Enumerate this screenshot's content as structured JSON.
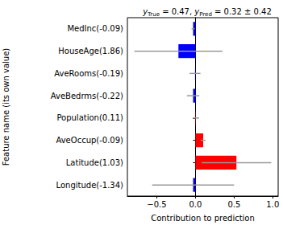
{
  "chart_data": {
    "type": "bar",
    "orientation": "horizontal",
    "title": "yTrue = 0.47, yPred = 0.32 ± 0.42",
    "xlabel": "Contribution to prediction",
    "ylabel": "Feature name (its own value)",
    "categories": [
      "MedInc(-0.09)",
      "HouseAge(1.86)",
      "AveRooms(-0.19)",
      "AveBedrms(-0.22)",
      "Population(0.11)",
      "AveOccup(-0.09)",
      "Latitude(1.03)",
      "Longitude(-1.34)"
    ],
    "values": [
      -0.03,
      -0.22,
      -0.005,
      -0.03,
      0.005,
      0.1,
      0.53,
      -0.03
    ],
    "errors": [
      0.02,
      0.57,
      0.07,
      0.08,
      0.04,
      0.03,
      0.45,
      0.53
    ],
    "colors": [
      "#0000ff",
      "#0000ff",
      "#0000ff",
      "#0000ff",
      "#ff0000",
      "#ff0000",
      "#ff0000",
      "#0000ff"
    ],
    "error_color": "#999999",
    "xlim": [
      -0.88,
      1.07
    ],
    "xticks": [
      {
        "value": -0.5,
        "label": "−0.5"
      },
      {
        "value": 0,
        "label": "0.0"
      },
      {
        "value": 0.5,
        "label": "0.5"
      },
      {
        "value": 1,
        "label": "1.0"
      }
    ],
    "grid": false
  }
}
